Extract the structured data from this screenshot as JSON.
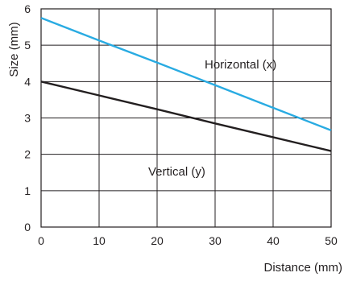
{
  "chart_data": {
    "type": "line",
    "title": "",
    "xlabel": "Distance (mm)",
    "ylabel": "Size (mm)",
    "xlim": [
      0,
      50
    ],
    "ylim": [
      0,
      6
    ],
    "x_ticks": [
      0,
      10,
      20,
      30,
      40,
      50
    ],
    "y_ticks": [
      0,
      1,
      2,
      3,
      4,
      5,
      6
    ],
    "x_tick_labels": [
      "0",
      "10",
      "20",
      "30",
      "40",
      "50"
    ],
    "y_tick_labels": [
      "0",
      "1",
      "2",
      "3",
      "4",
      "5",
      "6"
    ],
    "grid": true,
    "legend": "none",
    "series": [
      {
        "name": "Horizontal (x)",
        "color": "#29abe2",
        "x": [
          0,
          10,
          20,
          30,
          40,
          50
        ],
        "y": [
          5.75,
          5.13,
          4.52,
          3.9,
          3.28,
          2.66
        ]
      },
      {
        "name": "Vertical (y)",
        "color": "#231f20",
        "x": [
          0,
          10,
          20,
          30,
          40,
          50
        ],
        "y": [
          4.0,
          3.62,
          3.24,
          2.85,
          2.47,
          2.09
        ]
      }
    ],
    "colors": {
      "grid": "#231f20",
      "text": "#231f20"
    }
  }
}
